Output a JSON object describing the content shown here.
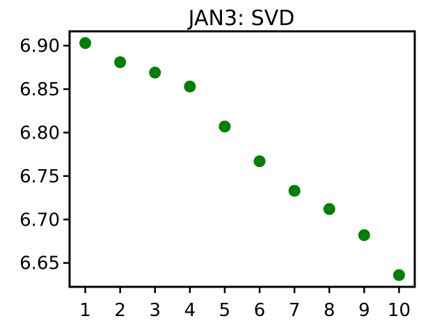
{
  "chart_data": {
    "type": "scatter",
    "title": "JAN3: SVD",
    "xlabel": "",
    "ylabel": "",
    "x": [
      1,
      2,
      3,
      4,
      5,
      6,
      7,
      8,
      9,
      10
    ],
    "y": [
      6.903,
      6.881,
      6.869,
      6.853,
      6.807,
      6.767,
      6.733,
      6.712,
      6.682,
      6.636
    ],
    "xticks": [
      1,
      2,
      3,
      4,
      5,
      6,
      7,
      8,
      9,
      10
    ],
    "xtick_labels": [
      "1",
      "2",
      "3",
      "4",
      "5",
      "6",
      "7",
      "8",
      "9",
      "10"
    ],
    "yticks": [
      6.65,
      6.7,
      6.75,
      6.8,
      6.85,
      6.9
    ],
    "ytick_labels": [
      "6.65",
      "6.70",
      "6.75",
      "6.80",
      "6.85",
      "6.90"
    ],
    "xlim": [
      0.55,
      10.45
    ],
    "ylim": [
      6.6225,
      6.9165
    ],
    "grid": false,
    "legend": false,
    "marker_color": "#008000"
  }
}
